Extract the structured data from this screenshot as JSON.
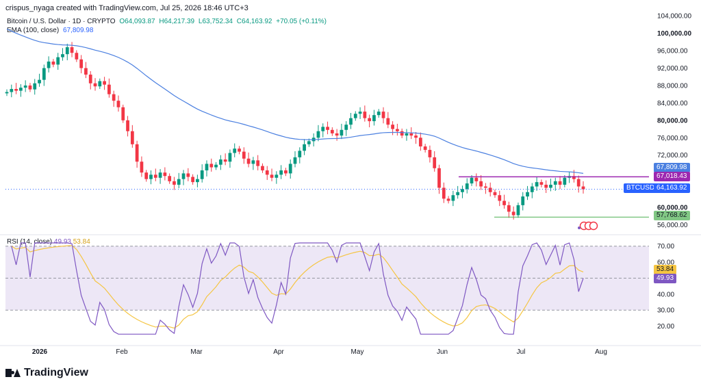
{
  "header": {
    "created_by": "crispus_nyaga created with TradingView.com, Jul 25, 2026 18:46 UTC+3",
    "symbol": "Bitcoin / U.S. Dollar · 1D · CRYPTO",
    "ohlc": {
      "o": "O64,093.87",
      "h": "H64,217.39",
      "l": "L63,752.34",
      "c": "C64,163.92",
      "chg": "+70.05 (+0.11%)"
    },
    "ema_label": "EMA (100, close)",
    "ema_value": "67,809.98"
  },
  "rsi_legend": {
    "label": "RSI (14, close)",
    "rsi": "49.93",
    "ma": "53.84"
  },
  "price_axis": [
    "104,000.00",
    "100,000.00",
    "96,000.00",
    "92,000.00",
    "88,000.00",
    "84,000.00",
    "80,000.00",
    "76,000.00",
    "72,000.00",
    "60,000.00",
    "56,000.00"
  ],
  "rsi_axis": [
    "70.00",
    "60.00",
    "40.00",
    "30.00",
    "20.00"
  ],
  "date_axis": [
    "2026",
    "Feb",
    "Mar",
    "Apr",
    "May",
    "Jun",
    "Jul",
    "Aug"
  ],
  "tags": {
    "ema": "67,809.98",
    "resistance": "67,018.43",
    "symbol": "BTCUSD",
    "last": "64,163.92",
    "support": "57,768.62",
    "rsi_ma": "53.84",
    "rsi": "49.93"
  },
  "logo": "TradingView",
  "colors": {
    "up": "#089981",
    "down": "#f23645",
    "ema": "#4a7fe0",
    "resistance": "#9c27b0",
    "support": "#4caf50",
    "rsi": "#7e57c2",
    "rsi_ma": "#f5c542",
    "rsi_band": "#ede7f6",
    "price_tag": "#2962ff"
  },
  "chart_data": {
    "type": "candlestick",
    "series_close": [
      86500,
      87200,
      86800,
      87500,
      88000,
      87100,
      88500,
      89300,
      92000,
      93500,
      92800,
      94500,
      95200,
      96800,
      95500,
      94000,
      92000,
      90500,
      88500,
      87800,
      89000,
      88200,
      86000,
      84500,
      83000,
      80000,
      77500,
      74500,
      70500,
      68000,
      66500,
      67500,
      66800,
      68000,
      67200,
      66000,
      65200,
      66500,
      67800,
      67000,
      65800,
      66500,
      68500,
      70000,
      69200,
      69800,
      71000,
      70500,
      72500,
      73500,
      72800,
      71200,
      70000,
      70800,
      69500,
      68500,
      67500,
      66800,
      67500,
      68500,
      67800,
      70000,
      71500,
      73000,
      74500,
      75200,
      76000,
      77500,
      78500,
      77800,
      77000,
      76500,
      77800,
      79000,
      80500,
      81500,
      82000,
      80500,
      79800,
      81200,
      82000,
      80500,
      79000,
      78000,
      77500,
      76500,
      77000,
      76500,
      76000,
      74000,
      73200,
      71500,
      69000,
      64500,
      62000,
      61500,
      62800,
      63500,
      64200,
      65500,
      66800,
      66000,
      64800,
      64500,
      63500,
      62800,
      61500,
      60500,
      59000,
      58200,
      60500,
      62500,
      63500,
      64800,
      65800,
      65200,
      64500,
      65200,
      66000,
      65200,
      66800,
      67200,
      66500,
      64800,
      64163.92
    ],
    "ema_100": 67809.98,
    "resistance": 67018.43,
    "support": 57768.62,
    "last": 64163.92,
    "rsi_last": 49.93,
    "rsi_ma_last": 53.84,
    "price_range": [
      54500,
      104500
    ],
    "rsi_range": [
      10,
      75
    ]
  }
}
